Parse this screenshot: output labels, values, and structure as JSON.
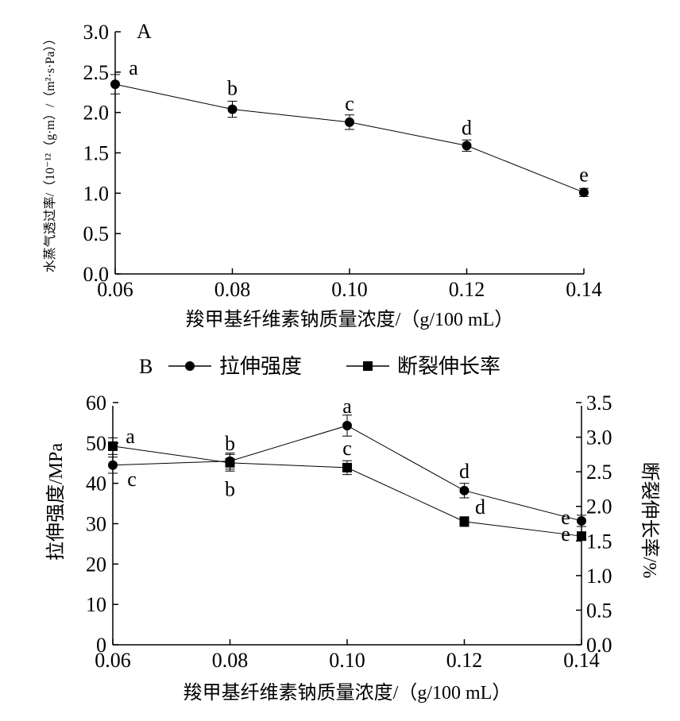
{
  "chart_data": [
    {
      "type": "line",
      "panel_label": "A",
      "xlabel": "羧甲基纤维素钠质量浓度/（g/100 mL）",
      "ylabel": "水蒸气透过率/（10⁻¹²（g·m）/（m²·s·Pa））",
      "x": [
        0.06,
        0.08,
        0.1,
        0.12,
        0.14
      ],
      "x_tick_labels": [
        "0.06",
        "0.08",
        "0.10",
        "0.12",
        "0.14"
      ],
      "y_tick_labels": [
        "0.0",
        "0.5",
        "1.0",
        "1.5",
        "2.0",
        "2.5",
        "3.0"
      ],
      "xlim": [
        0.06,
        0.14
      ],
      "ylim": [
        0.0,
        3.0
      ],
      "series": [
        {
          "marker": "circle",
          "values": [
            2.35,
            2.04,
            1.88,
            1.59,
            1.01
          ],
          "errors": [
            0.12,
            0.1,
            0.09,
            0.07,
            0.05
          ],
          "significance": [
            "a",
            "b",
            "c",
            "d",
            "e"
          ]
        }
      ]
    },
    {
      "type": "line",
      "panel_label": "B",
      "xlabel": "羧甲基纤维素钠质量浓度/（g/100 mL）",
      "ylabel": "拉伸强度/MPa",
      "ylabel_right": "断裂伸长率/%",
      "x": [
        0.06,
        0.08,
        0.1,
        0.12,
        0.14
      ],
      "x_tick_labels": [
        "0.06",
        "0.08",
        "0.10",
        "0.12",
        "0.14"
      ],
      "y_tick_labels": [
        "0",
        "10",
        "20",
        "30",
        "40",
        "50",
        "60"
      ],
      "y2_tick_labels": [
        "0.0",
        "0.5",
        "1.0",
        "1.5",
        "2.0",
        "2.5",
        "3.0",
        "3.5"
      ],
      "xlim": [
        0.06,
        0.14
      ],
      "ylim": [
        0,
        60
      ],
      "y2lim": [
        0.0,
        3.5
      ],
      "legend_position": "top",
      "series": [
        {
          "name": "拉伸强度",
          "marker": "circle",
          "axis": "left",
          "values": [
            44.5,
            45.5,
            54.3,
            38.2,
            30.7
          ],
          "errors": [
            2.0,
            2.0,
            2.6,
            1.8,
            1.4
          ],
          "significance": [
            "c",
            "b",
            "a",
            "d",
            "e"
          ]
        },
        {
          "name": "断裂伸长率",
          "marker": "square",
          "axis": "right",
          "values": [
            2.87,
            2.63,
            2.56,
            1.78,
            1.57
          ],
          "errors": [
            0.12,
            0.12,
            0.1,
            0.07,
            0.06
          ],
          "significance": [
            "a",
            "b",
            "c",
            "d",
            "e"
          ]
        }
      ]
    }
  ]
}
